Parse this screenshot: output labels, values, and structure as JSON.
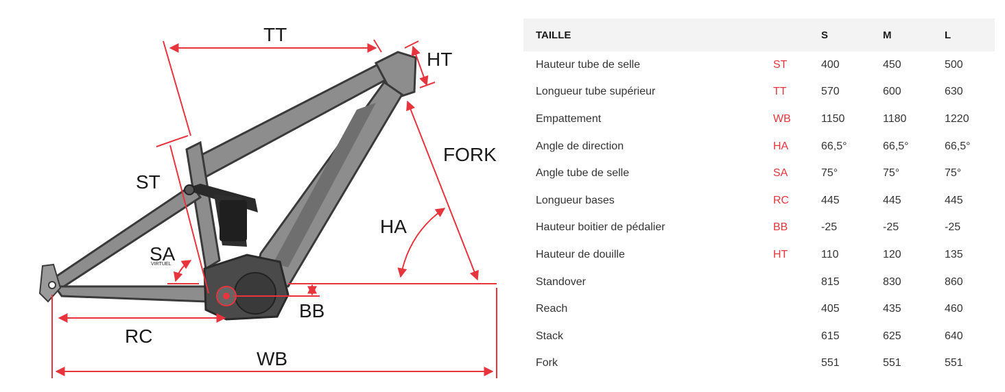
{
  "accent_color": "#e8343c",
  "diagram": {
    "labels": {
      "tt": "TT",
      "ht": "HT",
      "fork": "FORK",
      "st": "ST",
      "ha": "HA",
      "sa": "SA",
      "sa_note": "VIRTUEL",
      "bb": "BB",
      "rc": "RC",
      "wb": "WB"
    }
  },
  "table": {
    "header": {
      "label": "TAILLE",
      "abbr": "",
      "s": "S",
      "m": "M",
      "l": "L"
    },
    "rows": [
      {
        "label": "Hauteur tube de selle",
        "abbr": "ST",
        "s": "400",
        "m": "450",
        "l": "500"
      },
      {
        "label": "Longueur tube supérieur",
        "abbr": "TT",
        "s": "570",
        "m": "600",
        "l": "630"
      },
      {
        "label": "Empattement",
        "abbr": "WB",
        "s": "1150",
        "m": "1180",
        "l": "1220"
      },
      {
        "label": "Angle de direction",
        "abbr": "HA",
        "s": "66,5°",
        "m": "66,5°",
        "l": "66,5°"
      },
      {
        "label": "Angle tube de selle",
        "abbr": "SA",
        "s": "75°",
        "m": "75°",
        "l": "75°"
      },
      {
        "label": "Longueur bases",
        "abbr": "RC",
        "s": "445",
        "m": "445",
        "l": "445"
      },
      {
        "label": "Hauteur boitier de pédalier",
        "abbr": "BB",
        "s": "-25",
        "m": "-25",
        "l": "-25"
      },
      {
        "label": "Hauteur de douille",
        "abbr": "HT",
        "s": "110",
        "m": "120",
        "l": "135"
      },
      {
        "label": "Standover",
        "abbr": "",
        "s": "815",
        "m": "830",
        "l": "860"
      },
      {
        "label": "Reach",
        "abbr": "",
        "s": "405",
        "m": "435",
        "l": "460"
      },
      {
        "label": "Stack",
        "abbr": "",
        "s": "615",
        "m": "625",
        "l": "640"
      },
      {
        "label": "Fork",
        "abbr": "",
        "s": "551",
        "m": "551",
        "l": "551"
      }
    ]
  }
}
